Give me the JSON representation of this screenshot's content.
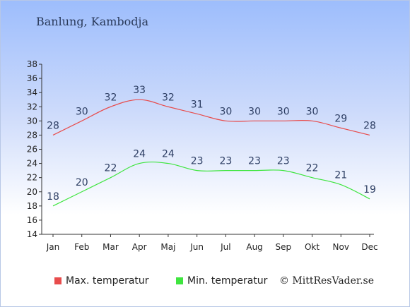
{
  "title": "Banlung, Kambodja",
  "credit": "© MittResVader.se",
  "colors": {
    "max": "#e84c4c",
    "min": "#3fe53f"
  },
  "chart_data": {
    "type": "line",
    "categories": [
      "Jan",
      "Feb",
      "Mar",
      "Apr",
      "Maj",
      "Jun",
      "Jul",
      "Aug",
      "Sep",
      "Okt",
      "Nov",
      "Dec"
    ],
    "ylim": [
      14,
      38
    ],
    "yticks": [
      14,
      16,
      18,
      20,
      22,
      24,
      26,
      28,
      30,
      32,
      34,
      36,
      38
    ],
    "grid": false,
    "legend_position": "bottom-left",
    "series": [
      {
        "name": "Max. temperatur",
        "color": "#e84c4c",
        "values": [
          28,
          30,
          32,
          33,
          32,
          31,
          30,
          30,
          30,
          30,
          29,
          28
        ]
      },
      {
        "name": "Min. temperatur",
        "color": "#3fe53f",
        "values": [
          18,
          20,
          22,
          24,
          24,
          23,
          23,
          23,
          23,
          22,
          21,
          19
        ]
      }
    ]
  }
}
